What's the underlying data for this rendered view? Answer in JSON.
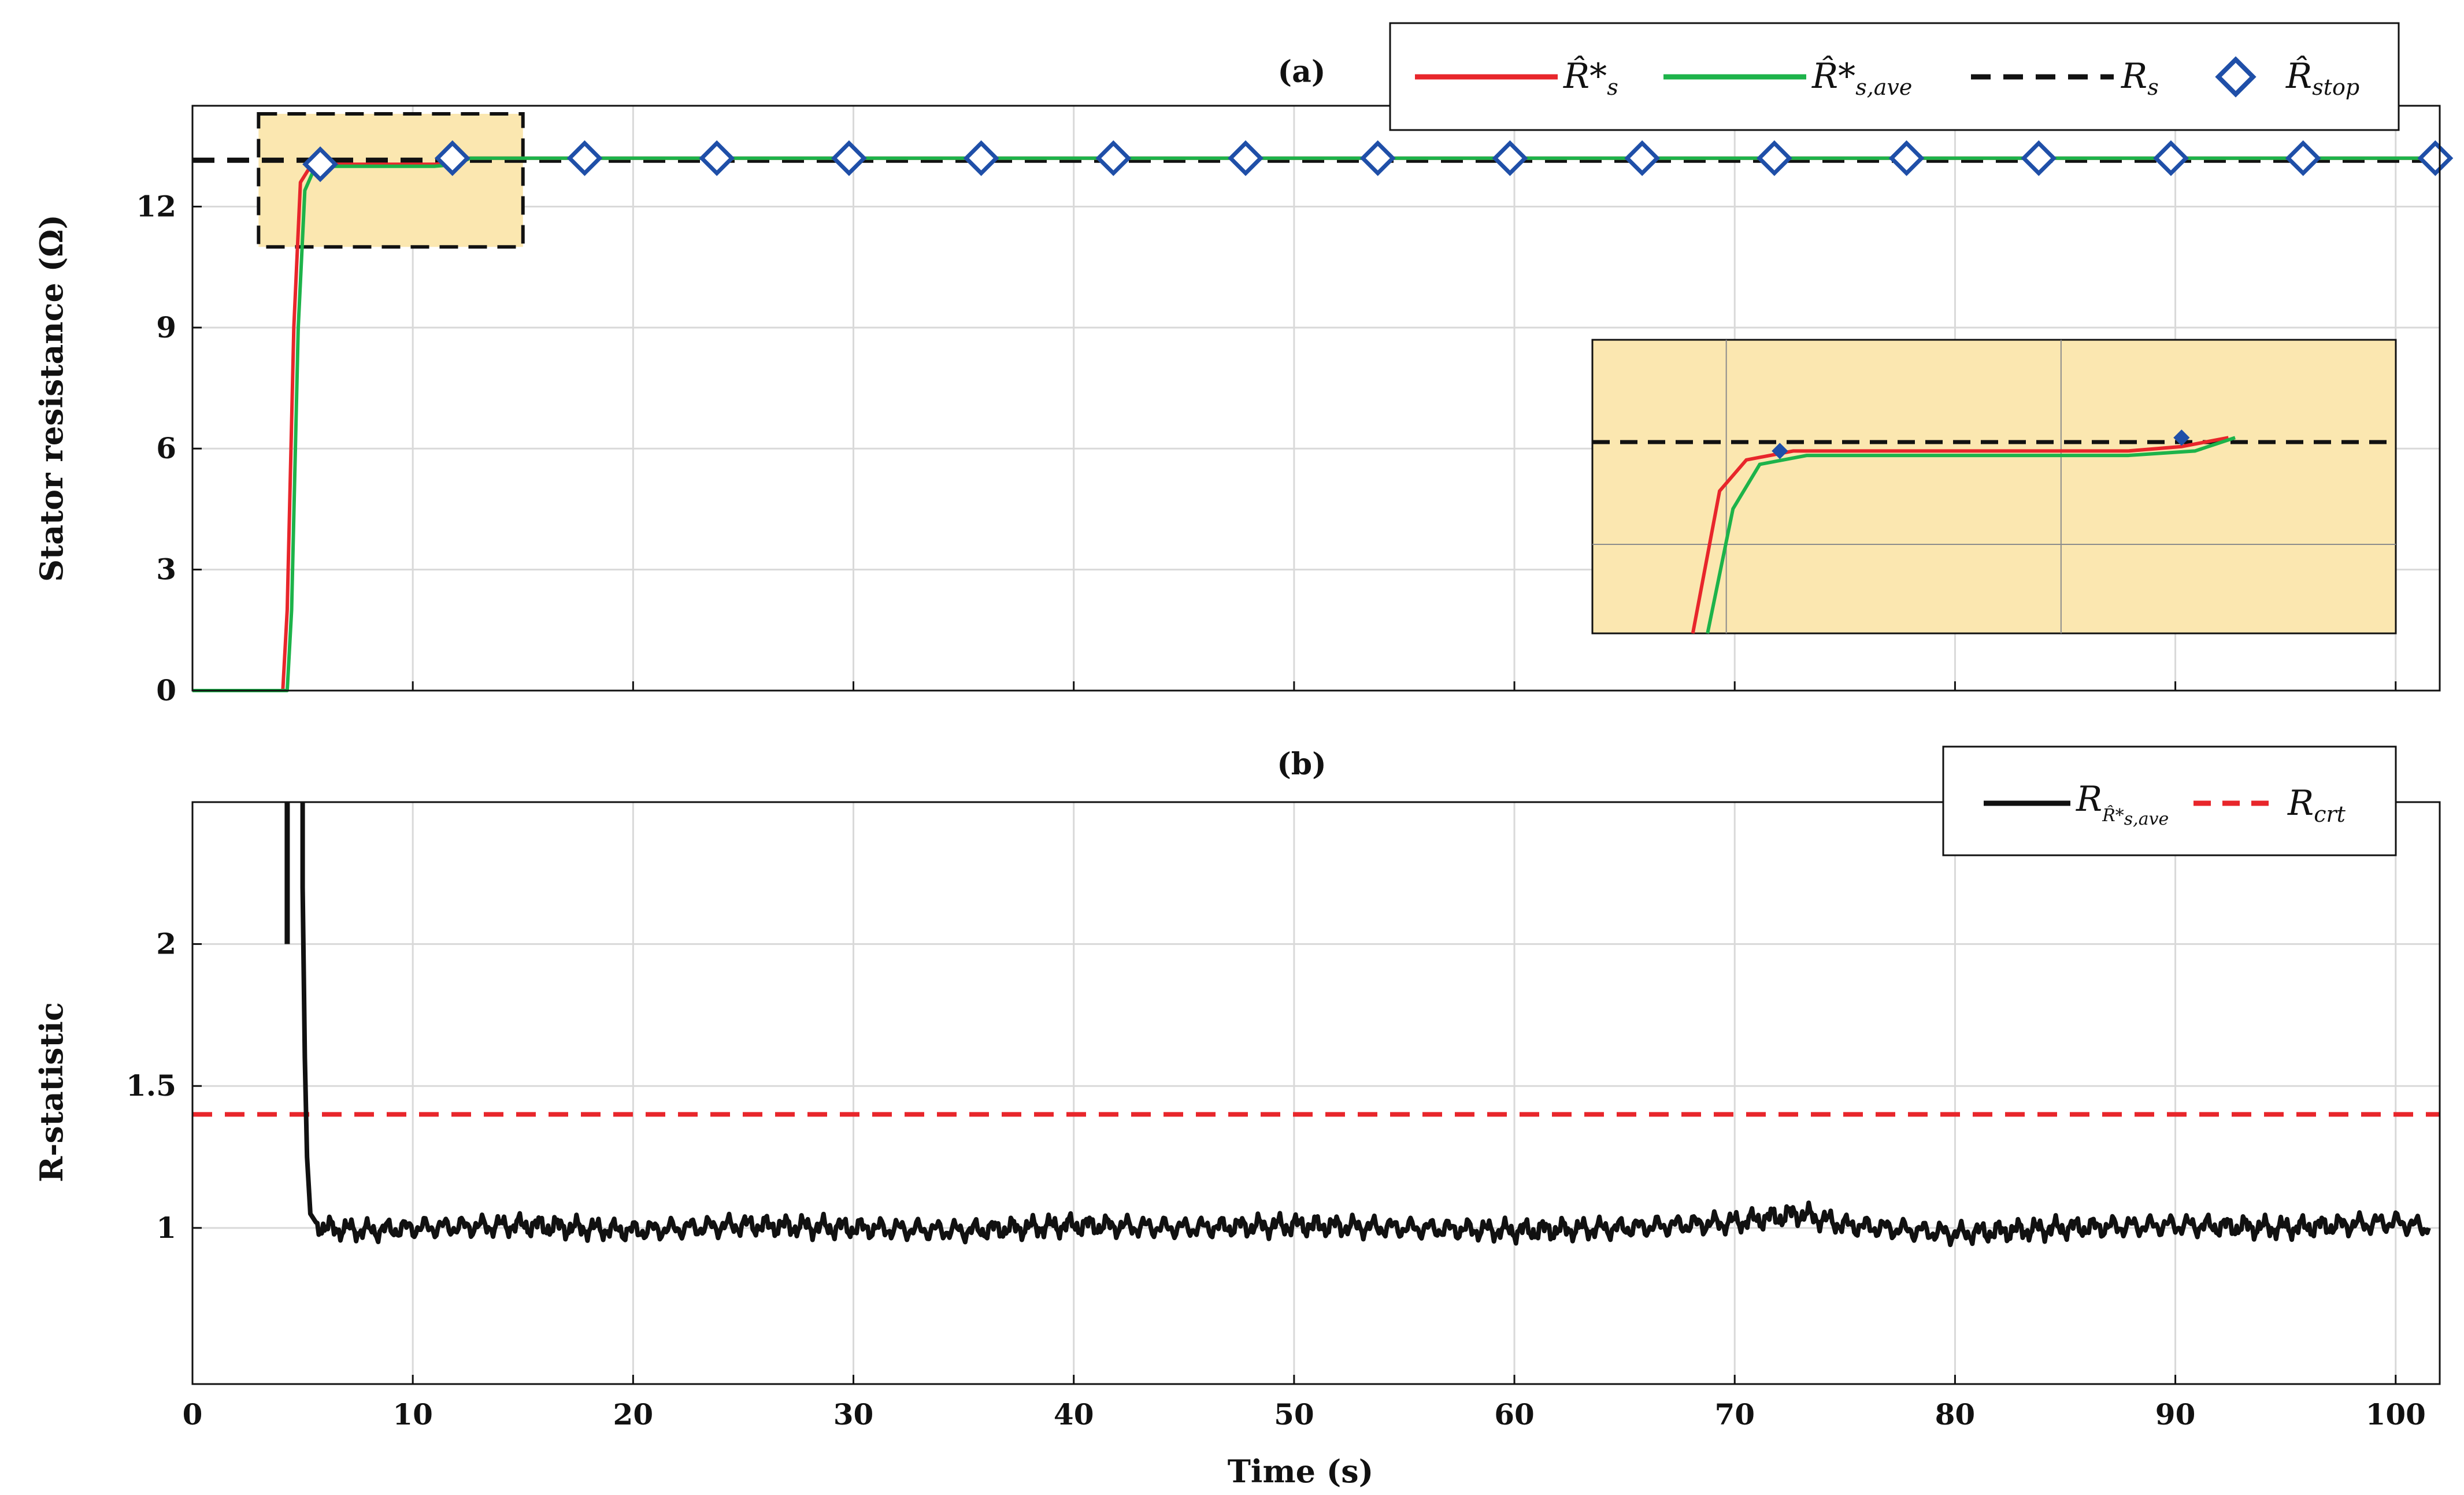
{
  "chart_data": [
    {
      "panel_title": "(a)",
      "type": "line",
      "ylabel": "Stator resistance (Ω)",
      "xlabel": "",
      "xlim": [
        0,
        102
      ],
      "ylim": [
        0,
        14.5
      ],
      "xticks": [
        0,
        10,
        20,
        30,
        40,
        50,
        60,
        70,
        80,
        90,
        100
      ],
      "yticks": [
        0,
        3,
        6,
        9,
        12
      ],
      "grid": true,
      "legend_position": "top-right",
      "colors": {
        "estimate": "#e8262b",
        "average": "#1db34a",
        "true": "#111111",
        "stop": "#1f4fa8",
        "highlight": "#fbe7b0"
      },
      "series": [
        {
          "key": "estimate",
          "legend": [
            "R̂*",
            "s"
          ],
          "style": "solid",
          "x": [
            0,
            4.1,
            4.3,
            4.6,
            4.9,
            5.3,
            6,
            8,
            11,
            11.8,
            12.5,
            20,
            30,
            40,
            50,
            60,
            70,
            80,
            90,
            100,
            102
          ],
          "y": [
            0,
            0,
            2,
            9,
            12.6,
            12.95,
            13.05,
            13.05,
            13.05,
            13.1,
            13.2,
            13.2,
            13.2,
            13.2,
            13.2,
            13.2,
            13.2,
            13.2,
            13.2,
            13.2,
            13.2
          ]
        },
        {
          "key": "average",
          "legend": [
            "R̂*",
            "s,ave"
          ],
          "style": "solid",
          "x": [
            0,
            4.3,
            4.5,
            4.8,
            5.1,
            5.5,
            6.2,
            8,
            11,
            12,
            12.6,
            20,
            30,
            40,
            50,
            60,
            70,
            80,
            90,
            100,
            102
          ],
          "y": [
            0,
            0,
            2,
            9,
            12.4,
            12.9,
            13.0,
            13.0,
            13.0,
            13.05,
            13.2,
            13.2,
            13.2,
            13.2,
            13.2,
            13.2,
            13.2,
            13.2,
            13.2,
            13.2,
            13.2
          ]
        },
        {
          "key": "true",
          "legend": [
            "R",
            "s"
          ],
          "style": "dashed",
          "x": [
            0,
            102
          ],
          "y": [
            13.15,
            13.15
          ]
        },
        {
          "key": "stop",
          "legend": [
            "R̂",
            "stop"
          ],
          "style": "markers",
          "x": [
            5.8,
            11.8,
            17.8,
            23.8,
            29.8,
            35.8,
            41.8,
            47.8,
            53.8,
            59.8,
            65.8,
            71.8,
            77.8,
            83.8,
            89.8,
            95.8,
            101.8
          ],
          "y": [
            13.05,
            13.2,
            13.2,
            13.2,
            13.2,
            13.2,
            13.2,
            13.2,
            13.2,
            13.2,
            13.2,
            13.2,
            13.2,
            13.2,
            13.2,
            13.2,
            13.2
          ]
        }
      ],
      "zoom_region": {
        "x": [
          3,
          15
        ],
        "y": [
          11,
          14.3
        ]
      }
    },
    {
      "panel_title": "(b)",
      "type": "line",
      "ylabel": "R-statistic",
      "xlabel": "Time (s)",
      "xlim": [
        0,
        102
      ],
      "ylim": [
        0.45,
        2.5
      ],
      "xticks": [
        0,
        10,
        20,
        30,
        40,
        50,
        60,
        70,
        80,
        90,
        100
      ],
      "xticklabels": [
        "0",
        "10",
        "20",
        "30",
        "40",
        "50",
        "60",
        "70",
        "80",
        "90",
        "100"
      ],
      "yticks": [
        1,
        1.5,
        2
      ],
      "yticklabels": [
        "1",
        "1.5",
        "2"
      ],
      "grid": true,
      "legend_position": "top-right",
      "series": [
        {
          "key": "rstat",
          "legend": [
            "R",
            "R̂*",
            "s,ave"
          ],
          "style": "solid",
          "color": "#111111",
          "x": [
            4.3,
            4.3,
            5.0,
            5.0,
            5.1,
            5.2,
            5.35,
            5.6,
            6,
            8,
            10,
            15,
            20,
            25,
            30,
            35,
            40,
            45,
            50,
            55,
            60,
            65,
            70,
            73,
            75,
            80,
            85,
            90,
            95,
            100,
            101.5
          ],
          "y": [
            2.5,
            2.0,
            2.5,
            2.2,
            1.6,
            1.25,
            1.05,
            1.02,
            1.0,
            0.99,
            1.0,
            1.01,
            0.99,
            1.01,
            1.0,
            0.99,
            1.01,
            1.0,
            1.01,
            1.0,
            0.99,
            1.0,
            1.02,
            1.05,
            1.01,
            0.98,
            1.0,
            1.01,
            1.0,
            1.02,
            1.0
          ]
        },
        {
          "key": "rcrt",
          "legend": [
            "R",
            "crt"
          ],
          "style": "dashed",
          "color": "#e8262b",
          "x": [
            0,
            102
          ],
          "y": [
            1.4,
            1.4
          ]
        }
      ]
    }
  ]
}
